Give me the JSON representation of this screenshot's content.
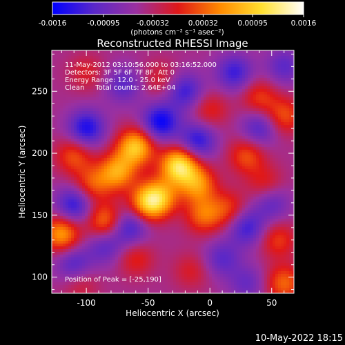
{
  "chart_data": {
    "type": "heatmap",
    "title": "Reconstructed RHESSI Image",
    "xlabel": "Heliocentric X (arcsec)",
    "ylabel": "Heliocentric Y (arcsec)",
    "xlim": [
      -128,
      68
    ],
    "ylim": [
      87,
      283
    ],
    "x_ticks": [
      -100,
      -50,
      0,
      50
    ],
    "y_ticks": [
      100,
      150,
      200,
      250
    ],
    "colorbar": {
      "min": -0.0016,
      "max": 0.0016,
      "tick_values": [
        -0.0016,
        -0.00095,
        -0.00032,
        0.00032,
        0.00095,
        0.0016
      ],
      "tick_labels": [
        "-0.0016",
        "-0.00095",
        "-0.00032",
        "0.00032",
        "0.00095",
        "0.0016"
      ],
      "units_label": "(photons cm⁻² s⁻¹ asec⁻²)",
      "colormap": [
        "#0000ff",
        "#5a28c8",
        "#9a30a0",
        "#e01818",
        "#ff8a00",
        "#ffe030",
        "#ffffff"
      ]
    },
    "annotations": [
      "11-May-2012 03:10:56.000 to 03:16:52.000",
      "Detectors: 3F 5F 6F 7F 8F, Att 0",
      "Energy Range: 12.0 - 25.0 keV",
      "Clean     Total counts: 2.64E+04"
    ],
    "peak_label": "Position of Peak = [-25,190]",
    "peak": {
      "x": -25,
      "y": 190
    },
    "sources": [
      {
        "x": -25,
        "y": 190,
        "flux": 0.0016
      },
      {
        "x": -60,
        "y": 205,
        "flux": 0.00135
      },
      {
        "x": -75,
        "y": 185,
        "flux": 0.0011
      },
      {
        "x": -50,
        "y": 160,
        "flux": 0.0012
      },
      {
        "x": -40,
        "y": 165,
        "flux": 0.0009
      },
      {
        "x": -10,
        "y": 175,
        "flux": 0.001
      },
      {
        "x": -5,
        "y": 150,
        "flux": 0.0008
      },
      {
        "x": -120,
        "y": 135,
        "flux": 0.0011
      },
      {
        "x": -85,
        "y": 145,
        "flux": 0.0009
      },
      {
        "x": -95,
        "y": 175,
        "flux": 0.0007
      },
      {
        "x": -110,
        "y": 198,
        "flux": 0.0007
      },
      {
        "x": 30,
        "y": 198,
        "flux": 0.0007
      },
      {
        "x": 15,
        "y": 155,
        "flux": 0.0006
      },
      {
        "x": 55,
        "y": 130,
        "flux": 0.0006
      },
      {
        "x": 60,
        "y": 95,
        "flux": 0.0008
      },
      {
        "x": -60,
        "y": 115,
        "flux": 0.0005
      },
      {
        "x": 40,
        "y": 245,
        "flux": 0.0006
      },
      {
        "x": 60,
        "y": 230,
        "flux": 0.0007
      },
      {
        "x": 0,
        "y": 235,
        "flux": 0.0005
      },
      {
        "x": -100,
        "y": 265,
        "flux": 0.0004
      },
      {
        "x": -15,
        "y": 105,
        "flux": 0.0004
      },
      {
        "x": -40,
        "y": 260,
        "flux": 0.0004
      },
      {
        "x": 45,
        "y": 175,
        "flux": 0.0005
      },
      {
        "x": -105,
        "y": 95,
        "flux": 0.0004
      }
    ],
    "negatives": [
      {
        "x": -40,
        "y": 225,
        "flux": -0.0011
      },
      {
        "x": -100,
        "y": 220,
        "flux": -0.001
      },
      {
        "x": -10,
        "y": 210,
        "flux": -0.0009
      },
      {
        "x": -110,
        "y": 158,
        "flux": -0.0009
      },
      {
        "x": -65,
        "y": 140,
        "flux": -0.0008
      },
      {
        "x": 30,
        "y": 140,
        "flux": -0.0008
      },
      {
        "x": 40,
        "y": 220,
        "flux": -0.0007
      },
      {
        "x": -20,
        "y": 250,
        "flux": -0.0008
      },
      {
        "x": 20,
        "y": 265,
        "flux": -0.0008
      },
      {
        "x": -110,
        "y": 110,
        "flux": -0.0007
      },
      {
        "x": 10,
        "y": 115,
        "flux": -0.0006
      },
      {
        "x": 50,
        "y": 160,
        "flux": -0.0006
      },
      {
        "x": -70,
        "y": 255,
        "flux": -0.0006
      },
      {
        "x": -85,
        "y": 125,
        "flux": -0.0006
      },
      {
        "x": 30,
        "y": 95,
        "flux": -0.0005
      },
      {
        "x": 60,
        "y": 270,
        "flux": -0.0006
      }
    ]
  },
  "timestamp": "10-May-2022 18:15"
}
